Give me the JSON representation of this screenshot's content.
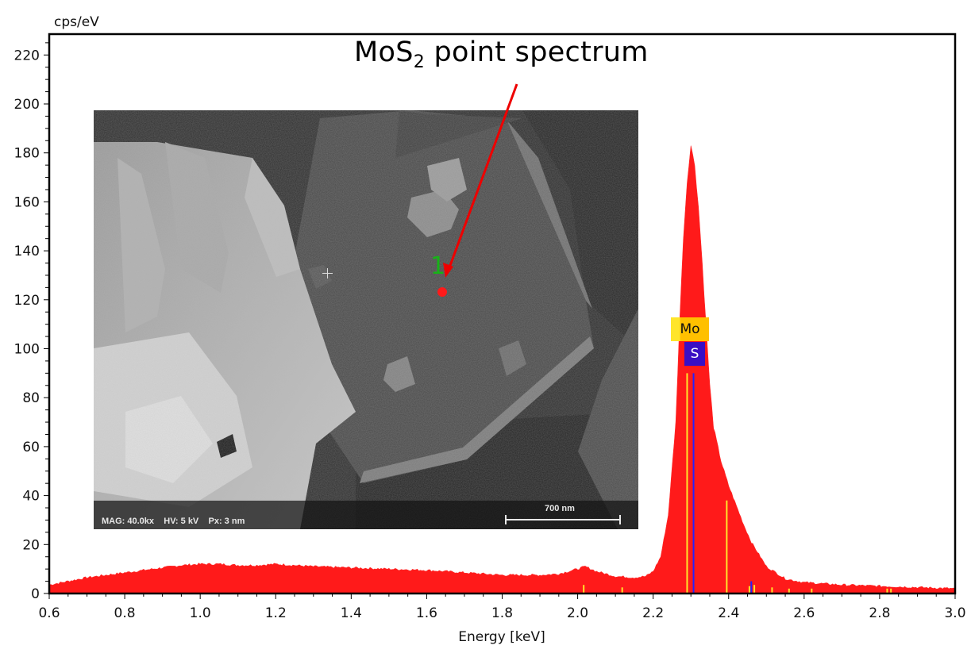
{
  "chart_data": {
    "type": "area",
    "title": "MoS2 point spectrum",
    "xlabel": "Energy [keV]",
    "ylabel": "cps/eV",
    "xlim": [
      0.6,
      3.0
    ],
    "ylim": [
      0,
      228
    ],
    "grid": false,
    "legend": "none",
    "x_ticks": [
      "0.6",
      "0.8",
      "1.0",
      "1.2",
      "1.4",
      "1.6",
      "1.8",
      "2.0",
      "2.2",
      "2.4",
      "2.6",
      "2.8",
      "3.0"
    ],
    "y_ticks": [
      "0",
      "20",
      "40",
      "60",
      "80",
      "100",
      "120",
      "140",
      "160",
      "180",
      "200",
      "220"
    ],
    "fill_color": "#ff1a1a",
    "series": [
      {
        "name": "Spectrum",
        "x": [
          0.6,
          0.65,
          0.7,
          0.75,
          0.8,
          0.85,
          0.9,
          0.95,
          1.0,
          1.05,
          1.1,
          1.15,
          1.2,
          1.3,
          1.4,
          1.5,
          1.6,
          1.7,
          1.8,
          1.9,
          1.95,
          2.0,
          2.02,
          2.05,
          2.1,
          2.15,
          2.18,
          2.2,
          2.22,
          2.24,
          2.26,
          2.27,
          2.28,
          2.29,
          2.3,
          2.31,
          2.32,
          2.33,
          2.34,
          2.35,
          2.36,
          2.38,
          2.4,
          2.42,
          2.44,
          2.46,
          2.48,
          2.5,
          2.55,
          2.6,
          2.7,
          2.8,
          2.9,
          3.0
        ],
        "values": [
          3.5,
          5,
          6.5,
          7.5,
          8.5,
          9.5,
          10.5,
          11.5,
          12,
          12,
          11.5,
          11.5,
          12,
          11,
          10.5,
          10,
          9.5,
          8.5,
          7.5,
          7.5,
          8,
          10,
          11,
          9,
          7,
          6.5,
          7,
          9,
          15,
          32,
          70,
          110,
          145,
          168,
          183,
          175,
          158,
          135,
          110,
          85,
          68,
          54,
          44,
          36,
          28,
          21,
          16,
          11,
          6,
          4.5,
          3.5,
          3,
          2.5,
          2
        ]
      }
    ],
    "annotations": [
      {
        "text": "MoS2 point spectrum",
        "type": "callout-arrow",
        "points_to": "SEM inset point 1"
      },
      {
        "text": "Mo",
        "type": "element-label",
        "energy_keV": 2.29,
        "color": "#ffc000"
      },
      {
        "text": "S",
        "type": "element-label",
        "energy_keV": 2.31,
        "color": "#3a0fc4"
      }
    ],
    "marker_lines": [
      {
        "energy_keV": 2.29,
        "height": 90,
        "color": "#ffe52a"
      },
      {
        "energy_keV": 2.307,
        "height": 90,
        "color": "#2222ff"
      },
      {
        "energy_keV": 2.395,
        "height": 38,
        "color": "#ffe52a"
      },
      {
        "energy_keV": 2.016,
        "height": 3.5,
        "color": "#ffe52a"
      },
      {
        "energy_keV": 2.118,
        "height": 2.5,
        "color": "#ffe52a"
      },
      {
        "energy_keV": 2.455,
        "height": 3,
        "color": "#ffe52a"
      },
      {
        "energy_keV": 2.46,
        "height": 5,
        "color": "#2222ff"
      },
      {
        "energy_keV": 2.468,
        "height": 3.5,
        "color": "#ffe52a"
      },
      {
        "energy_keV": 2.515,
        "height": 2.5,
        "color": "#ffe52a"
      },
      {
        "energy_keV": 2.56,
        "height": 2,
        "color": "#ffe52a"
      },
      {
        "energy_keV": 2.62,
        "height": 2,
        "color": "#ffe52a"
      },
      {
        "energy_keV": 2.82,
        "height": 2,
        "color": "#ffe52a"
      },
      {
        "energy_keV": 2.83,
        "height": 2,
        "color": "#ffe52a"
      }
    ]
  },
  "annotation": {
    "prefix": "MoS",
    "subscript": "2",
    "suffix": " point spectrum"
  },
  "element_labels": {
    "mo": "Mo",
    "s": "S"
  },
  "inset": {
    "info": "MAG: 40.0kx    HV: 5 kV    Px: 3 nm",
    "scale_bar_label": "700 nm",
    "point_label": "1"
  },
  "axes": {
    "ylabel": "cps/eV",
    "xlabel": "Energy [keV]"
  }
}
